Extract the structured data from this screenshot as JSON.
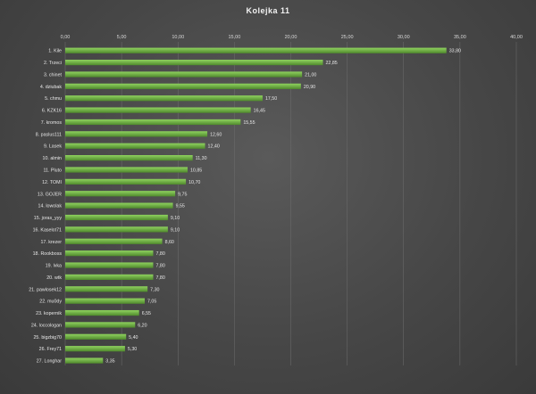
{
  "chart_data": {
    "type": "bar",
    "orientation": "horizontal",
    "title": "Kolejka  11",
    "xlim": [
      0,
      40
    ],
    "x_ticks": [
      "0,00",
      "5,00",
      "10,00",
      "15,00",
      "20,00",
      "25,00",
      "30,00",
      "35,00",
      "40,00"
    ],
    "x_tick_values": [
      0,
      5,
      10,
      15,
      20,
      25,
      30,
      35,
      40
    ],
    "grid": true,
    "bar_color": "#70ad47",
    "categories": [
      "1. Kile",
      "2. Trzeci",
      "3. chinet",
      "4. dziubak",
      "5. chmu",
      "6. KZK16",
      "7. kromos",
      "8. paslus111",
      "9. Lasek",
      "10. almin",
      "11. Pluto",
      "12. TOMI",
      "13. GOJER",
      "14. lowolak",
      "15. joras_yyy",
      "16. Kaselot71",
      "17. krezer",
      "18. Rookboss",
      "19. lvka",
      "20. wtk",
      "21. pawlosek12",
      "22. mu0dy",
      "23. kopernik",
      "24. loccologan",
      "25. bigzbig70",
      "26. Frey71",
      "27. Longhar"
    ],
    "values": [
      33.8,
      22.85,
      21.0,
      20.9,
      17.5,
      16.45,
      15.55,
      12.6,
      12.4,
      11.3,
      10.85,
      10.7,
      9.75,
      9.55,
      9.1,
      9.1,
      8.6,
      7.8,
      7.8,
      7.8,
      7.3,
      7.05,
      6.55,
      6.2,
      5.4,
      5.3,
      3.35
    ],
    "value_labels": [
      "33,80",
      "22,85",
      "21,00",
      "20,90",
      "17,50",
      "16,45",
      "15,55",
      "12,60",
      "12,40",
      "11,30",
      "10,85",
      "10,70",
      "9,75",
      "9,55",
      "9,10",
      "9,10",
      "8,60",
      "7,80",
      "7,80",
      "7,80",
      "7,30",
      "7,05",
      "6,55",
      "6,20",
      "5,40",
      "5,30",
      "3,35"
    ]
  }
}
